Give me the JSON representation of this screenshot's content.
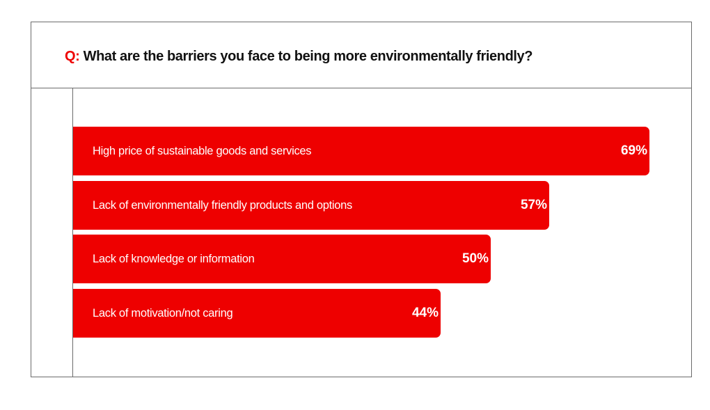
{
  "question": {
    "prefix": "Q:",
    "text": "What are the barriers you face to being more environmentally friendly?"
  },
  "colors": {
    "bar": "#ee0000",
    "prefix": "#ee0000",
    "text": "#111111",
    "border": "#6b6b6b"
  },
  "chart_data": {
    "type": "bar",
    "orientation": "horizontal",
    "title": "Q: What are the barriers you face to being more environmentally friendly?",
    "categories": [
      "High price of sustainable goods and services",
      "Lack of environmentally friendly products and options",
      "Lack of knowledge or information",
      "Lack of motivation/not caring"
    ],
    "values": [
      69,
      57,
      50,
      44
    ],
    "value_labels": [
      "69%",
      "57%",
      "50%",
      "44%"
    ],
    "unit": "%",
    "grid": false,
    "legend": "none"
  }
}
